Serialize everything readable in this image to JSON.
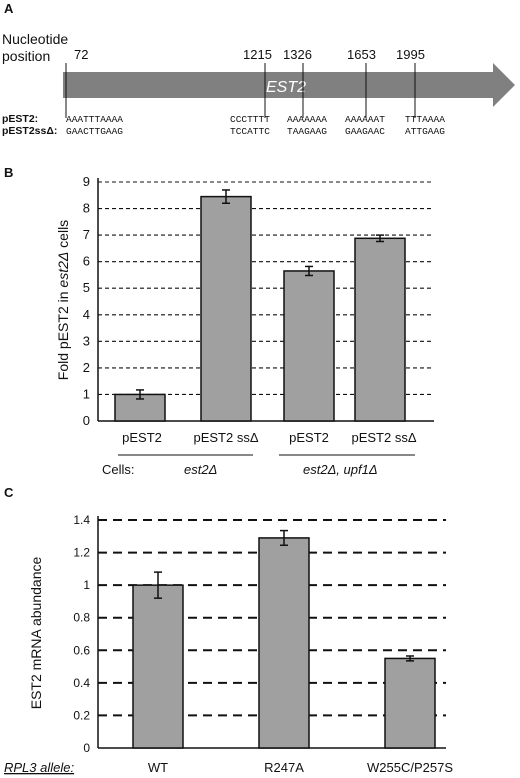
{
  "panelA": {
    "letter": "A",
    "position_label_1": "Nucleotide",
    "position_label_2": "position",
    "gene_label": "EST2",
    "positions": [
      "72",
      "1215",
      "1326",
      "1653",
      "1995"
    ],
    "rows": [
      {
        "name": "pEST2:",
        "seqs": [
          "AAATTTAAAA",
          "CCCTTTT",
          "AAAAAAA",
          "AAAAAAT",
          "TTTAAAA"
        ]
      },
      {
        "name": "pEST2ssΔ:",
        "seqs": [
          "GAACTTGAAG",
          "TCCATTC",
          "TAAGAAG",
          "GAAGAAC",
          "ATTGAAG"
        ]
      }
    ],
    "arrow_color": "#808080"
  },
  "panelB": {
    "letter": "B",
    "cells_label": "Cells:",
    "group1": "est2Δ",
    "group2": "est2Δ, upf1Δ",
    "ylabel_parts": [
      "Fold pEST2 in ",
      "est2Δ",
      " cells"
    ],
    "chart_data": {
      "type": "bar",
      "categories": [
        "pEST2",
        "pEST2 ssΔ",
        "pEST2",
        "pEST2 ssΔ"
      ],
      "values": [
        1.0,
        8.45,
        5.65,
        6.88
      ],
      "errors": [
        0.17,
        0.25,
        0.17,
        0.12
      ],
      "yticks": [
        "0",
        "1",
        "2",
        "3",
        "4",
        "5",
        "6",
        "7",
        "8",
        "9"
      ],
      "ylim": [
        0,
        9
      ],
      "grid": true,
      "bar_color": "#a0a0a0"
    }
  },
  "panelC": {
    "letter": "C",
    "allele_label": "RPL3 allele:",
    "ylabel": "EST2 mRNA abundance",
    "chart_data": {
      "type": "bar",
      "categories": [
        "WT",
        "R247A",
        "W255C/P257S"
      ],
      "values": [
        1.0,
        1.29,
        0.55
      ],
      "errors": [
        0.08,
        0.045,
        0.015
      ],
      "yticks": [
        "0",
        "0.2",
        "0.4",
        "0.6",
        "0.8",
        "1",
        "1.2",
        "1.4"
      ],
      "ylim": [
        0,
        1.4
      ],
      "grid": true,
      "bar_color": "#a0a0a0"
    }
  }
}
